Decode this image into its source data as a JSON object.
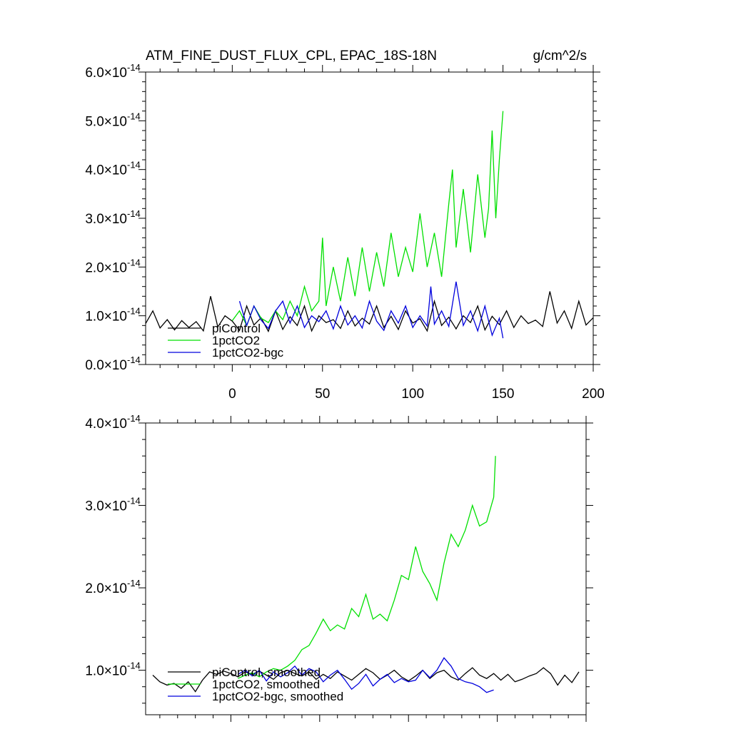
{
  "chart_data": [
    {
      "type": "line",
      "title": "ATM_FINE_DUST_FLUX_CPL, EPAC_18S-18N",
      "units": "g/cm^2/s",
      "xlim": [
        -48,
        200
      ],
      "ylim": [
        0,
        6e-14
      ],
      "xticks": [
        0,
        50,
        100,
        150,
        200
      ],
      "xtick_labels": [
        "0",
        "50",
        "100",
        "150",
        "200"
      ],
      "yticks": [
        0,
        1e-14,
        2e-14,
        3e-14,
        4e-14,
        5e-14,
        6e-14
      ],
      "ytick_mantissas": [
        "0.0",
        "1.0",
        "2.0",
        "3.0",
        "4.0",
        "5.0",
        "6.0"
      ],
      "ytick_times": "×10",
      "ytick_exponent": "-14",
      "legend_position": "bottom-left",
      "series": [
        {
          "name": "piControl",
          "color": "#000000",
          "x": [
            -48,
            -44,
            -40,
            -36,
            -32,
            -28,
            -24,
            -20,
            -16,
            -12,
            -8,
            -4,
            0,
            4,
            8,
            12,
            16,
            20,
            24,
            28,
            32,
            36,
            40,
            44,
            48,
            52,
            56,
            60,
            64,
            68,
            72,
            76,
            80,
            84,
            88,
            92,
            96,
            100,
            104,
            108,
            112,
            116,
            120,
            124,
            128,
            132,
            136,
            140,
            144,
            148,
            152,
            156,
            160,
            164,
            168,
            172,
            176,
            180,
            184,
            188,
            192,
            196,
            200
          ],
          "values": [
            8.4e-15,
            1.1e-14,
            7.5e-15,
            9.2e-15,
            7.1e-15,
            9e-15,
            7.6e-15,
            8.8e-15,
            6.9e-15,
            1.4e-14,
            7.7e-15,
            1e-14,
            8.9e-15,
            7e-15,
            1.2e-14,
            8.1e-15,
            9.6e-15,
            6.8e-15,
            1.1e-14,
            7.2e-15,
            9.8e-15,
            8e-15,
            1.2e-14,
            6.9e-15,
            1e-14,
            8.6e-15,
            9.2e-15,
            7.4e-15,
            1.1e-14,
            7.9e-15,
            9.5e-15,
            8.3e-15,
            1.2e-14,
            7.6e-15,
            9.9e-15,
            7.2e-15,
            1.1e-14,
            8.5e-15,
            9.4e-15,
            6.9e-15,
            1.3e-14,
            8e-15,
            9.7e-15,
            7.3e-15,
            1e-14,
            8.6e-15,
            1.2e-14,
            7.1e-15,
            9.9e-15,
            8.2e-15,
            1.1e-14,
            7.6e-15,
            1e-14,
            8.4e-15,
            9.1e-15,
            7.8e-15,
            1.5e-14,
            8.5e-15,
            1.1e-14,
            7.4e-15,
            1.3e-14,
            8.1e-15,
            9.6e-15
          ]
        },
        {
          "name": "1pctCO2",
          "color": "#00e000",
          "x": [
            0,
            4,
            8,
            12,
            16,
            20,
            24,
            28,
            32,
            36,
            40,
            44,
            48,
            50,
            52,
            56,
            60,
            64,
            68,
            72,
            76,
            80,
            84,
            88,
            92,
            96,
            100,
            104,
            108,
            112,
            116,
            120,
            122,
            124,
            128,
            132,
            136,
            140,
            142,
            144,
            146,
            148,
            150
          ],
          "values": [
            9e-15,
            1.1e-14,
            8e-15,
            1.2e-14,
            9.5e-15,
            8.6e-15,
            1.1e-14,
            9.2e-15,
            1.3e-14,
            1e-14,
            1.6e-14,
            1.1e-14,
            1.3e-14,
            2.6e-14,
            1.2e-14,
            2e-14,
            1.3e-14,
            2.2e-14,
            1.4e-14,
            2.4e-14,
            1.5e-14,
            2.3e-14,
            1.6e-14,
            2.7e-14,
            1.8e-14,
            2.4e-14,
            1.9e-14,
            3.1e-14,
            2e-14,
            2.7e-14,
            1.8e-14,
            3.3e-14,
            4e-14,
            2.4e-14,
            3.6e-14,
            2.3e-14,
            3.9e-14,
            2.6e-14,
            3.2e-14,
            4.8e-14,
            3e-14,
            4.2e-14,
            5.2e-14
          ]
        },
        {
          "name": "1pctCO2-bgc",
          "color": "#0000dd",
          "x": [
            4,
            8,
            12,
            16,
            20,
            24,
            28,
            32,
            36,
            40,
            44,
            48,
            52,
            56,
            60,
            64,
            68,
            72,
            76,
            80,
            84,
            88,
            92,
            96,
            100,
            104,
            108,
            110,
            112,
            116,
            120,
            124,
            128,
            132,
            136,
            140,
            144,
            148,
            150
          ],
          "values": [
            1.3e-14,
            8e-15,
            1.2e-14,
            9.1e-15,
            7.4e-15,
            1.1e-14,
            1.3e-14,
            8.5e-15,
            1.2e-14,
            7.6e-15,
            1e-14,
            8.8e-15,
            1.1e-14,
            7.3e-15,
            1.2e-14,
            8.1e-15,
            1e-14,
            7.5e-15,
            1.3e-14,
            8.9e-15,
            7e-15,
            1.1e-14,
            8.5e-15,
            1.2e-14,
            7.6e-15,
            1e-14,
            7.9e-15,
            1.6e-14,
            8.3e-15,
            1.1e-14,
            7.8e-15,
            1.7e-14,
            8e-15,
            1.1e-14,
            6.9e-15,
            1.2e-14,
            6e-15,
            9.5e-15,
            5.4e-15
          ]
        }
      ]
    },
    {
      "type": "line",
      "xlim": [
        -48,
        200
      ],
      "ylim": [
        4.6e-15,
        4e-14
      ],
      "xticks": [
        0,
        50,
        100,
        150,
        200
      ],
      "yticks": [
        1e-14,
        2e-14,
        3e-14,
        4e-14
      ],
      "ytick_mantissas": [
        "1.0",
        "2.0",
        "3.0",
        "4.0"
      ],
      "ytick_times": "×10",
      "ytick_exponent": "-14",
      "legend_position": "bottom-left",
      "series": [
        {
          "name": "piControl, smoothed",
          "color": "#000000",
          "x": [
            -44,
            -40,
            -36,
            -32,
            -28,
            -24,
            -20,
            -16,
            -12,
            -8,
            -4,
            0,
            4,
            8,
            12,
            16,
            20,
            24,
            28,
            32,
            36,
            40,
            44,
            48,
            52,
            56,
            60,
            64,
            68,
            72,
            76,
            80,
            84,
            88,
            92,
            96,
            100,
            104,
            108,
            112,
            116,
            120,
            124,
            128,
            132,
            136,
            140,
            144,
            148,
            152,
            156,
            160,
            164,
            168,
            172,
            176,
            180,
            184,
            188,
            192,
            196
          ],
          "values": [
            9.4e-15,
            8.6e-15,
            8.2e-15,
            8.4e-15,
            7.8e-15,
            8.6e-15,
            7.4e-15,
            8.8e-15,
            9.8e-15,
            9.5e-15,
            9.9e-15,
            9.6e-15,
            9.2e-15,
            9.8e-15,
            9.5e-15,
            9.9e-15,
            9.4e-15,
            8.9e-15,
            9.7e-15,
            1e-14,
            9.6e-15,
            9.3e-15,
            9.8e-15,
            8.9e-15,
            9.5e-15,
            9e-15,
            9.8e-15,
            9.3e-15,
            8.8e-15,
            9.5e-15,
            1.02e-14,
            9.7e-15,
            8.9e-15,
            9.4e-15,
            1e-14,
            9.2e-15,
            8.7e-15,
            9.3e-15,
            1e-14,
            9e-15,
            9.7e-15,
            1e-14,
            9.2e-15,
            8.8e-15,
            9.6e-15,
            1.03e-14,
            9.4e-15,
            9e-15,
            9.6e-15,
            8.8e-15,
            9.5e-15,
            8.6e-15,
            8.9e-15,
            9.3e-15,
            9.6e-15,
            1.03e-14,
            9.6e-15,
            8.2e-15,
            9.4e-15,
            8.5e-15,
            9.8e-15
          ]
        },
        {
          "name": "1pctCO2, smoothed",
          "color": "#00e000",
          "x": [
            4,
            8,
            12,
            16,
            20,
            24,
            28,
            32,
            36,
            40,
            44,
            48,
            52,
            56,
            60,
            64,
            68,
            72,
            76,
            80,
            84,
            88,
            92,
            96,
            100,
            104,
            108,
            112,
            116,
            120,
            124,
            128,
            132,
            136,
            140,
            144,
            148,
            149
          ],
          "values": [
            9e-15,
            9.4e-15,
            9.7e-15,
            9.2e-15,
            9.8e-15,
            1.02e-14,
            1e-14,
            1.05e-14,
            1.12e-14,
            1.25e-14,
            1.3e-14,
            1.45e-14,
            1.62e-14,
            1.48e-14,
            1.55e-14,
            1.5e-14,
            1.75e-14,
            1.65e-14,
            1.92e-14,
            1.62e-14,
            1.68e-14,
            1.6e-14,
            1.85e-14,
            2.15e-14,
            2.1e-14,
            2.5e-14,
            2.2e-14,
            2.05e-14,
            1.85e-14,
            2.3e-14,
            2.65e-14,
            2.5e-14,
            2.7e-14,
            3e-14,
            2.75e-14,
            2.8e-14,
            3.1e-14,
            3.6e-14
          ]
        },
        {
          "name": "1pctCO2-bgc, smoothed",
          "color": "#0000dd",
          "x": [
            4,
            8,
            12,
            16,
            20,
            24,
            28,
            32,
            36,
            40,
            44,
            48,
            52,
            56,
            60,
            64,
            68,
            72,
            76,
            80,
            84,
            88,
            92,
            96,
            100,
            104,
            108,
            112,
            116,
            120,
            124,
            128,
            132,
            136,
            140,
            144,
            148
          ],
          "values": [
            9.5e-15,
            1e-14,
            9.3e-15,
            1e-14,
            8.7e-15,
            9.8e-15,
            9.2e-15,
            9.7e-15,
            1.05e-14,
            9.4e-15,
            1.02e-14,
            9.8e-15,
            8.6e-15,
            9.4e-15,
            1e-14,
            8.9e-15,
            7.7e-15,
            8.4e-15,
            9.5e-15,
            8.1e-15,
            8.9e-15,
            9.5e-15,
            8.5e-15,
            9e-15,
            8.6e-15,
            8.8e-15,
            1e-14,
            9.1e-15,
            1e-14,
            1.15e-14,
            1.05e-14,
            9e-15,
            8.6e-15,
            8.4e-15,
            8e-15,
            7.3e-15,
            7.6e-15
          ]
        }
      ]
    }
  ]
}
